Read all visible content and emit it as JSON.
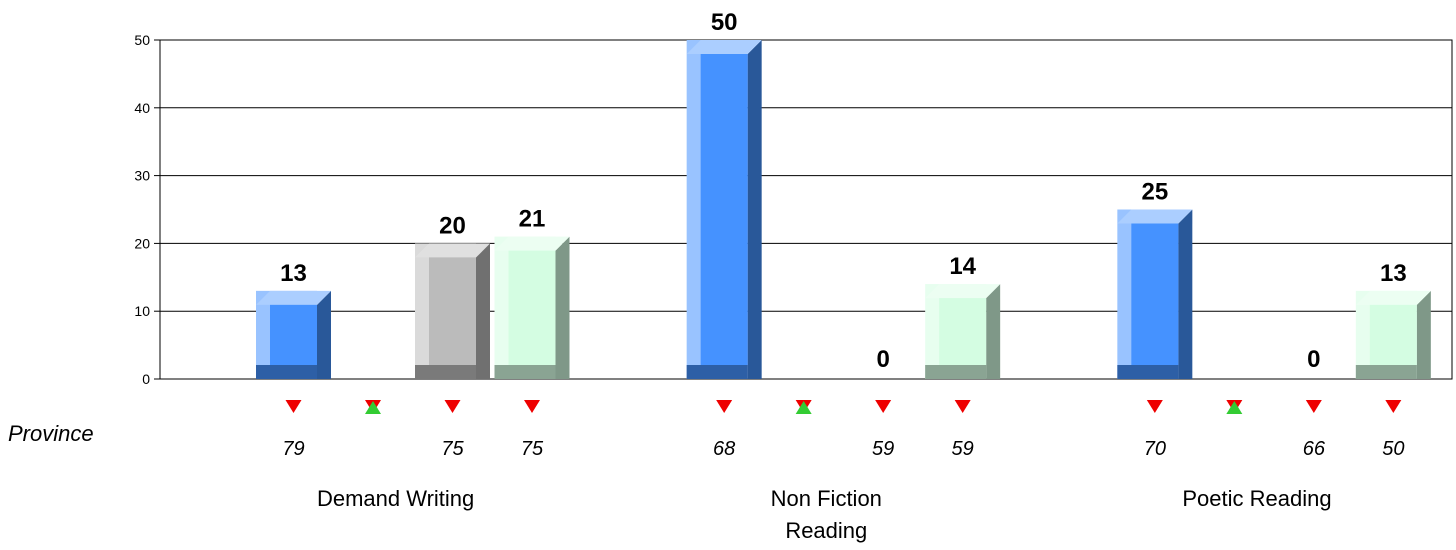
{
  "chart_data": {
    "type": "bar",
    "ylim": [
      0,
      50
    ],
    "yticks": [
      0,
      10,
      20,
      30,
      40,
      50
    ],
    "grid": true,
    "categories": [
      "Demand Writing",
      "Non Fiction Reading",
      "Poetic Reading"
    ],
    "categories_wrapped": [
      [
        "Demand Writing"
      ],
      [
        "Non Fiction",
        "Reading"
      ],
      [
        "Poetic Reading"
      ]
    ],
    "series": [
      {
        "color": "#4592ff",
        "values": [
          13,
          50,
          25
        ],
        "labels": [
          "13",
          "50",
          "25"
        ]
      },
      {
        "color": "#ffffff",
        "values": [
          null,
          null,
          null
        ],
        "labels": [
          "",
          "",
          ""
        ]
      },
      {
        "color": "#bbbbbb",
        "values": [
          20,
          0,
          0
        ],
        "labels": [
          "20",
          "0",
          "0"
        ]
      },
      {
        "color": "#d4fde2",
        "values": [
          21,
          14,
          13
        ],
        "labels": [
          "21",
          "14",
          "13"
        ]
      }
    ],
    "province": {
      "label": "Province",
      "values": [
        [
          "79",
          "",
          "75",
          "75"
        ],
        [
          "68",
          "",
          "59",
          "59"
        ],
        [
          "70",
          "",
          "66",
          "50"
        ]
      ],
      "markers": [
        [
          "down",
          "mixed",
          "down",
          "down"
        ],
        [
          "down",
          "mixed",
          "down",
          "down"
        ],
        [
          "down",
          "mixed",
          "down",
          "down"
        ]
      ]
    },
    "marker_colors": {
      "down": "#ee0000",
      "up": "#33cc33"
    }
  }
}
